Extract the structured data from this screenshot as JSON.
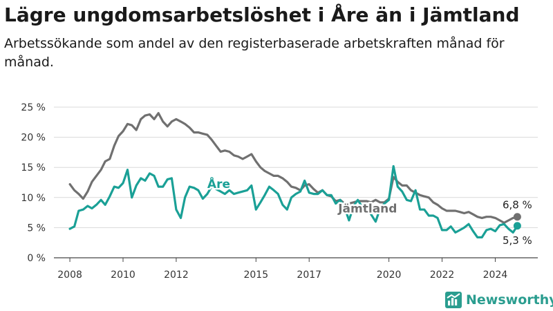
{
  "header": {
    "title": "Lägre ungdomsarbetslöshet i Åre än i Jämtland",
    "subtitle": "Arbetssökande som andel av den registerbaserade arbetskraften månad för månad."
  },
  "brand": {
    "name": "Newsworthy",
    "icon": "newsworthy-logo-icon",
    "color": "#2a9d8f"
  },
  "chart_data": {
    "type": "line",
    "ylim": [
      0,
      25
    ],
    "y_ticks": [
      0,
      5,
      10,
      15,
      20,
      25
    ],
    "y_tick_labels": [
      "0 %",
      "5 %",
      "10 %",
      "15 %",
      "20 %",
      "25 %"
    ],
    "x_ticks": [
      2008,
      2010,
      2012,
      2015,
      2017,
      2020,
      2022,
      2024
    ],
    "x_tick_labels": [
      "2008",
      "2010",
      "2012",
      "2015",
      "2017",
      "2020",
      "2022",
      "2024"
    ],
    "xlim": [
      2007.4,
      2025.6
    ],
    "grid": true,
    "legend": "none",
    "series": [
      {
        "name": "Jämtland",
        "color": "#707070",
        "end_label": "6,8 %",
        "x": [
          2008.0,
          2008.17,
          2008.33,
          2008.5,
          2008.67,
          2008.83,
          2009.0,
          2009.17,
          2009.33,
          2009.5,
          2009.67,
          2009.83,
          2010.0,
          2010.17,
          2010.33,
          2010.5,
          2010.67,
          2010.83,
          2011.0,
          2011.17,
          2011.33,
          2011.5,
          2011.67,
          2011.83,
          2012.0,
          2012.17,
          2012.33,
          2012.5,
          2012.67,
          2012.83,
          2013.0,
          2013.17,
          2013.33,
          2013.5,
          2013.67,
          2013.83,
          2014.0,
          2014.17,
          2014.33,
          2014.5,
          2014.67,
          2014.83,
          2015.0,
          2015.17,
          2015.33,
          2015.5,
          2015.67,
          2015.83,
          2016.0,
          2016.17,
          2016.33,
          2016.5,
          2016.67,
          2016.83,
          2017.0,
          2017.17,
          2017.33,
          2017.5,
          2017.67,
          2017.83,
          2018.0,
          2018.17,
          2018.33,
          2018.5,
          2018.67,
          2018.83,
          2019.0,
          2019.17,
          2019.33,
          2019.5,
          2019.67,
          2019.83,
          2020.0,
          2020.17,
          2020.33,
          2020.5,
          2020.67,
          2020.83,
          2021.0,
          2021.17,
          2021.33,
          2021.5,
          2021.67,
          2021.83,
          2022.0,
          2022.17,
          2022.33,
          2022.5,
          2022.67,
          2022.83,
          2023.0,
          2023.17,
          2023.33,
          2023.5,
          2023.67,
          2023.83,
          2024.0,
          2024.17,
          2024.33,
          2024.5,
          2024.67,
          2024.83
        ],
        "values": [
          12.2,
          11.2,
          10.6,
          9.8,
          11.0,
          12.6,
          13.6,
          14.6,
          16.0,
          16.4,
          18.6,
          20.2,
          21.0,
          22.2,
          22.0,
          21.2,
          23.0,
          23.6,
          23.8,
          23.0,
          24.0,
          22.6,
          21.8,
          22.6,
          23.0,
          22.6,
          22.2,
          21.6,
          20.8,
          20.8,
          20.6,
          20.4,
          19.6,
          18.6,
          17.6,
          17.8,
          17.6,
          17.0,
          16.8,
          16.4,
          16.8,
          17.2,
          16.0,
          15.0,
          14.4,
          14.0,
          13.6,
          13.6,
          13.2,
          12.6,
          11.8,
          11.6,
          11.2,
          12.0,
          12.2,
          11.4,
          10.8,
          11.2,
          10.4,
          10.2,
          9.4,
          9.6,
          9.0,
          9.0,
          9.2,
          9.4,
          9.4,
          9.4,
          9.2,
          9.6,
          9.2,
          9.2,
          9.8,
          13.4,
          12.6,
          12.0,
          12.0,
          11.2,
          10.8,
          10.4,
          10.2,
          10.0,
          9.2,
          8.8,
          8.2,
          7.8,
          7.8,
          7.8,
          7.6,
          7.4,
          7.6,
          7.2,
          6.8,
          6.6,
          6.8,
          6.8,
          6.6,
          6.2,
          5.8,
          6.2,
          6.6,
          6.8
        ]
      },
      {
        "name": "Åre",
        "color": "#1aa096",
        "end_label": "5,3 %",
        "x": [
          2008.0,
          2008.17,
          2008.33,
          2008.5,
          2008.67,
          2008.83,
          2009.0,
          2009.17,
          2009.33,
          2009.5,
          2009.67,
          2009.83,
          2010.0,
          2010.17,
          2010.33,
          2010.5,
          2010.67,
          2010.83,
          2011.0,
          2011.17,
          2011.33,
          2011.5,
          2011.67,
          2011.83,
          2012.0,
          2012.17,
          2012.33,
          2012.5,
          2012.67,
          2012.83,
          2013.0,
          2013.17,
          2013.33,
          2013.5,
          2013.67,
          2013.83,
          2014.0,
          2014.17,
          2014.33,
          2014.5,
          2014.67,
          2014.83,
          2015.0,
          2015.17,
          2015.33,
          2015.5,
          2015.67,
          2015.83,
          2016.0,
          2016.17,
          2016.33,
          2016.5,
          2016.67,
          2016.83,
          2017.0,
          2017.17,
          2017.33,
          2017.5,
          2017.67,
          2017.83,
          2018.0,
          2018.17,
          2018.33,
          2018.5,
          2018.67,
          2018.83,
          2019.0,
          2019.17,
          2019.33,
          2019.5,
          2019.67,
          2019.83,
          2020.0,
          2020.17,
          2020.33,
          2020.5,
          2020.67,
          2020.83,
          2021.0,
          2021.17,
          2021.33,
          2021.5,
          2021.67,
          2021.83,
          2022.0,
          2022.17,
          2022.33,
          2022.5,
          2022.67,
          2022.83,
          2023.0,
          2023.17,
          2023.33,
          2023.5,
          2023.67,
          2023.83,
          2024.0,
          2024.17,
          2024.33,
          2024.5,
          2024.67,
          2024.83
        ],
        "values": [
          4.8,
          5.2,
          7.8,
          8.0,
          8.6,
          8.2,
          8.8,
          9.6,
          8.8,
          10.2,
          11.8,
          11.6,
          12.4,
          14.6,
          10.0,
          12.0,
          13.2,
          12.8,
          14.0,
          13.6,
          11.8,
          11.8,
          13.0,
          13.2,
          8.0,
          6.6,
          10.0,
          11.8,
          11.6,
          11.2,
          9.8,
          10.6,
          11.8,
          11.4,
          11.0,
          10.6,
          11.2,
          10.6,
          10.8,
          11.0,
          11.2,
          12.0,
          8.0,
          9.2,
          10.4,
          11.8,
          11.2,
          10.6,
          8.8,
          8.0,
          10.0,
          10.6,
          11.0,
          12.8,
          10.8,
          10.6,
          10.6,
          11.2,
          10.4,
          10.4,
          9.0,
          9.6,
          8.4,
          6.2,
          8.6,
          9.6,
          8.4,
          8.6,
          7.2,
          6.0,
          8.2,
          9.0,
          9.6,
          15.2,
          11.8,
          11.0,
          9.6,
          9.4,
          11.2,
          8.0,
          8.0,
          7.0,
          7.0,
          6.6,
          4.6,
          4.6,
          5.2,
          4.2,
          4.6,
          5.0,
          5.6,
          4.4,
          3.4,
          3.4,
          4.6,
          4.8,
          4.4,
          5.4,
          5.6,
          4.8,
          4.2,
          5.3
        ]
      }
    ]
  }
}
